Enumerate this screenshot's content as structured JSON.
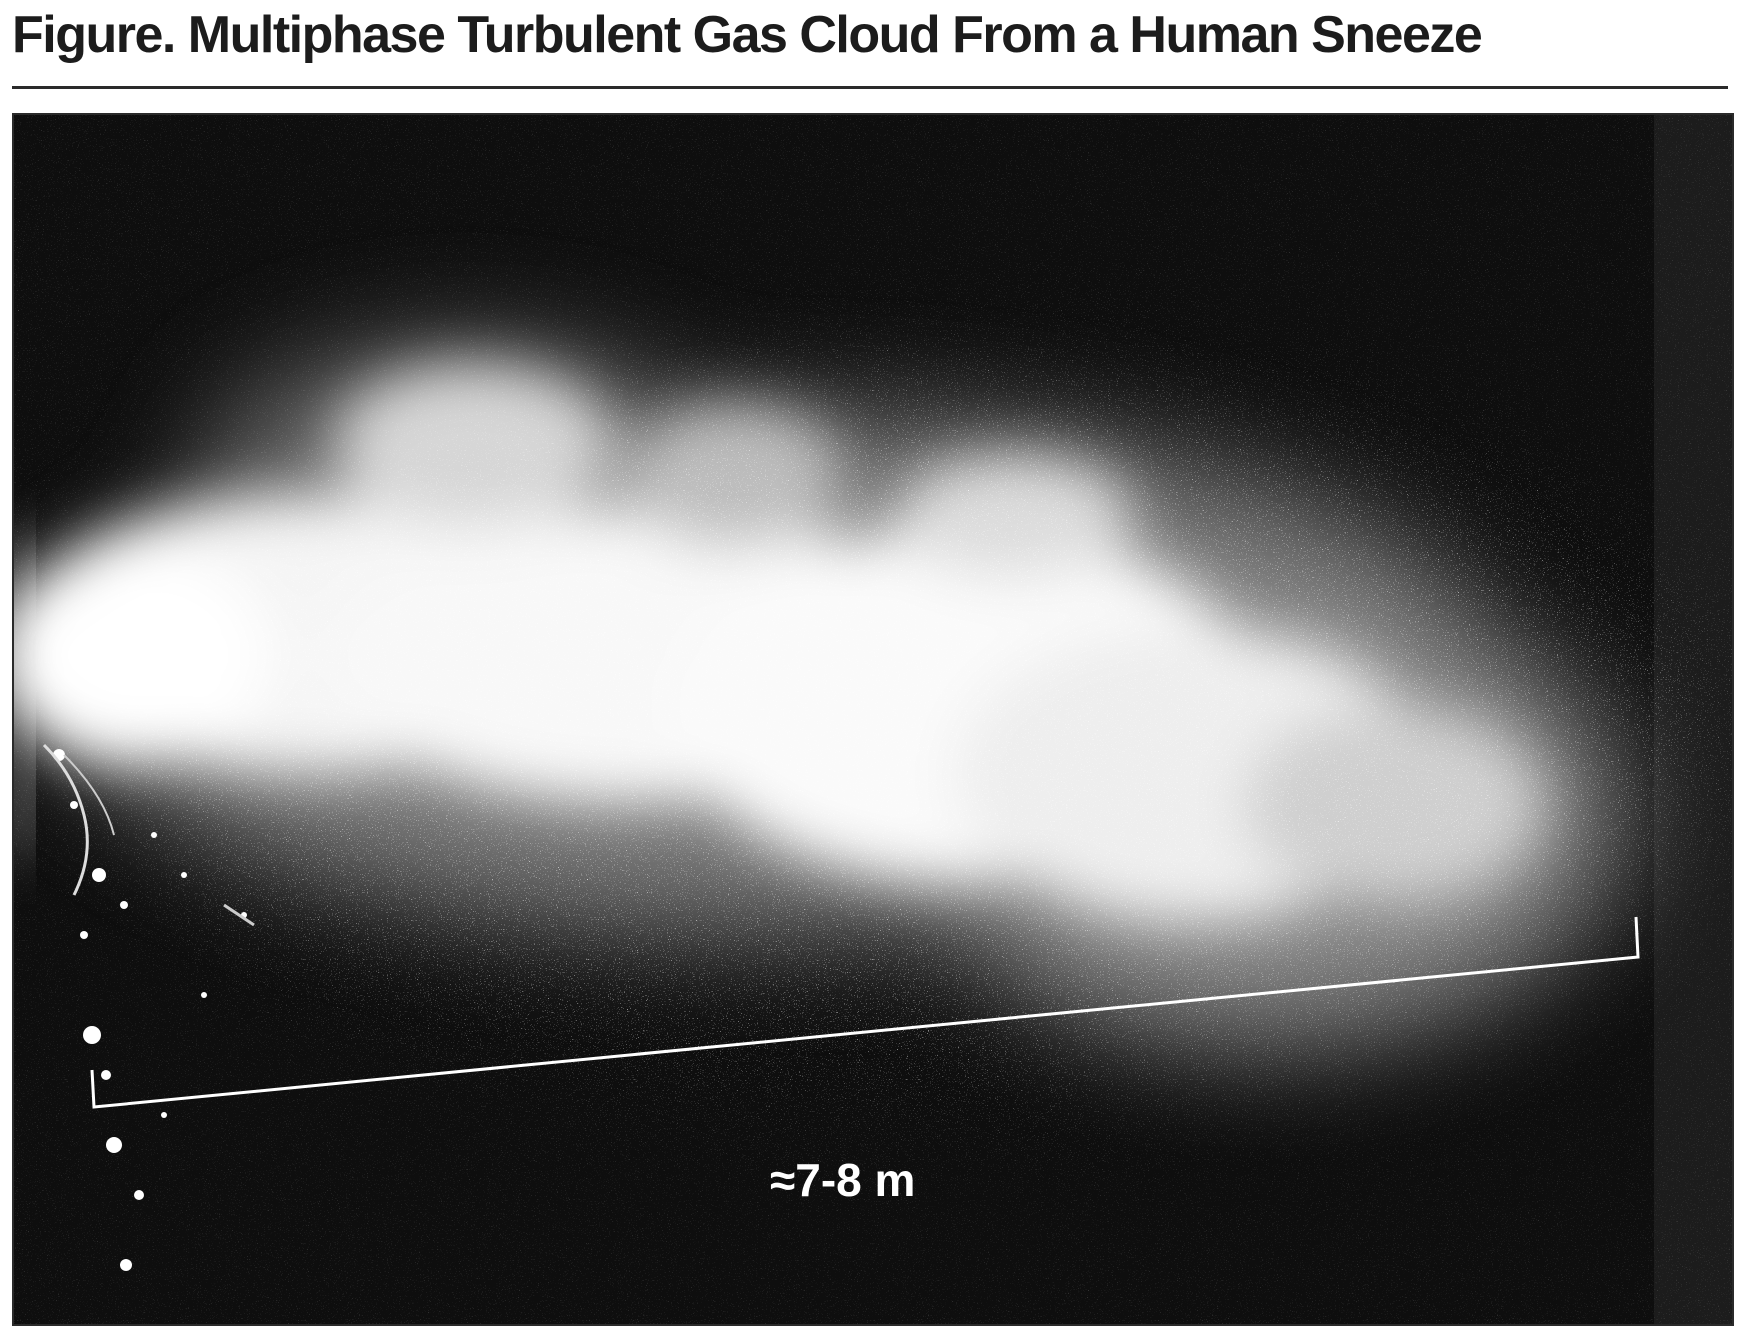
{
  "figure": {
    "title": "Figure. Multiphase Turbulent Gas Cloud From a Human Sneeze"
  },
  "photo": {
    "scale_label": "≈7-8 m"
  }
}
